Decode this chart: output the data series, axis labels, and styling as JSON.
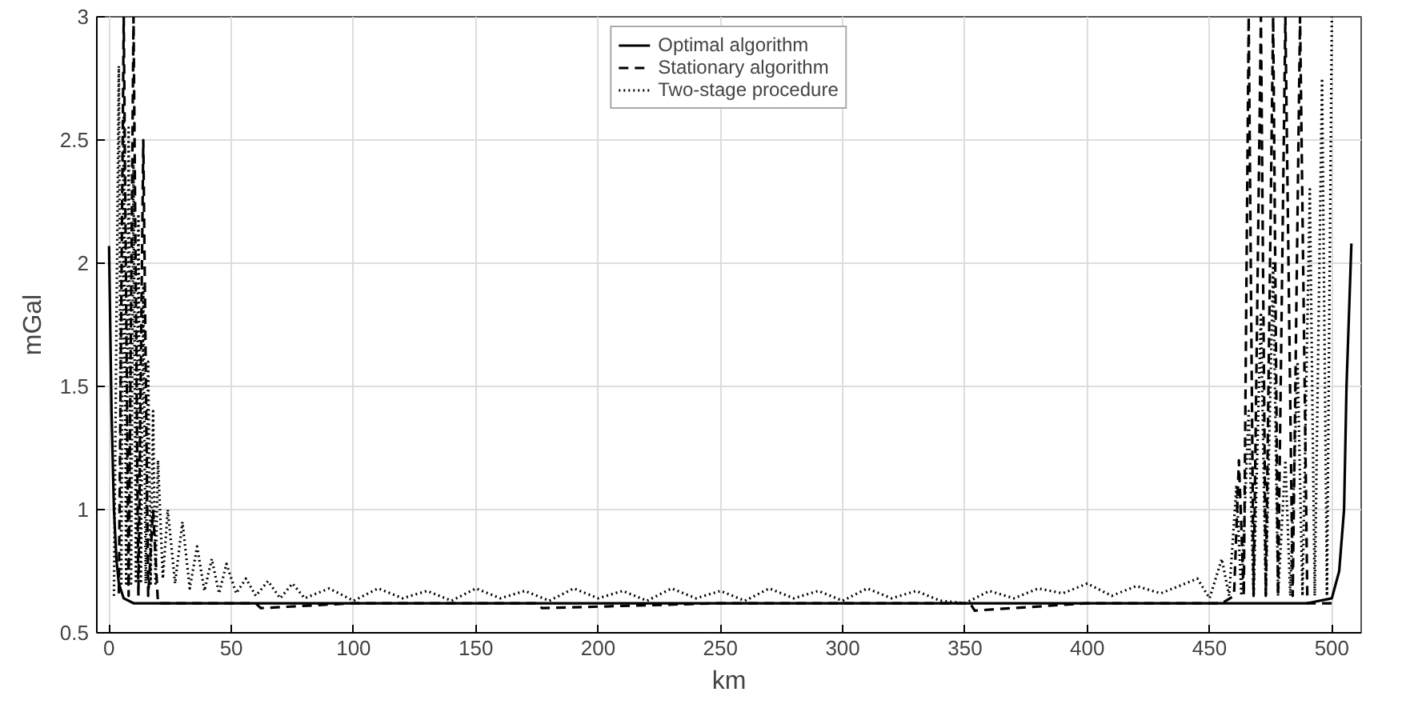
{
  "chart_data": {
    "type": "line",
    "xlabel": "km",
    "ylabel": "mGal",
    "xlim": [
      -5,
      512
    ],
    "ylim": [
      0.5,
      3
    ],
    "xticks": [
      0,
      50,
      100,
      150,
      200,
      250,
      300,
      350,
      400,
      450,
      500
    ],
    "yticks": [
      0.5,
      1,
      1.5,
      2,
      2.5,
      3
    ],
    "grid": true,
    "legend": "top",
    "series": [
      {
        "name": "Optimal algorithm",
        "color": "#000000",
        "line_style": "solid",
        "x": [
          0,
          1,
          2,
          3,
          4,
          6,
          10,
          100,
          200,
          300,
          400,
          490,
          500,
          503,
          505,
          506,
          508
        ],
        "values": [
          2.07,
          1.4,
          1.0,
          0.8,
          0.7,
          0.64,
          0.62,
          0.62,
          0.62,
          0.62,
          0.62,
          0.62,
          0.64,
          0.75,
          1.0,
          1.5,
          2.08
        ]
      },
      {
        "name": "Stationary algorithm",
        "color": "#000000",
        "line_style": "dashed",
        "x": [
          4,
          6,
          8,
          10,
          12,
          14,
          16,
          18,
          20,
          22,
          40,
          60,
          62,
          100,
          140,
          175,
          177,
          250,
          300,
          352,
          354,
          400,
          455,
          460,
          462,
          464,
          466,
          468,
          471,
          473,
          476,
          478,
          481,
          484,
          487,
          490,
          500
        ],
        "values": [
          0.66,
          3,
          0.65,
          3,
          0.65,
          2.5,
          0.65,
          1.0,
          0.62,
          0.62,
          0.62,
          0.62,
          0.6,
          0.62,
          0.62,
          0.62,
          0.6,
          0.62,
          0.62,
          0.62,
          0.59,
          0.62,
          0.62,
          0.65,
          1.2,
          0.65,
          3,
          0.65,
          3,
          0.65,
          3,
          0.65,
          3,
          0.65,
          3,
          0.62,
          0.62
        ]
      },
      {
        "name": "Two-stage procedure",
        "color": "#000000",
        "line_style": "dotted",
        "x": [
          2,
          4,
          5,
          6,
          7,
          8,
          9,
          10,
          11,
          12,
          13,
          14,
          15,
          16,
          17,
          18,
          19,
          20,
          22,
          24,
          27,
          30,
          33,
          36,
          39,
          42,
          45,
          48,
          52,
          56,
          60,
          65,
          70,
          75,
          80,
          90,
          100,
          110,
          120,
          130,
          140,
          150,
          160,
          170,
          180,
          190,
          200,
          210,
          220,
          230,
          240,
          250,
          260,
          270,
          280,
          290,
          300,
          310,
          320,
          330,
          340,
          350,
          360,
          370,
          380,
          390,
          400,
          410,
          420,
          430,
          440,
          445,
          450,
          455,
          458,
          461,
          463,
          466,
          468,
          471,
          473,
          476,
          478,
          481,
          483,
          486,
          488,
          491,
          493,
          496,
          498,
          500
        ],
        "values": [
          0.65,
          2.8,
          0.7,
          2.6,
          0.7,
          2.55,
          0.7,
          2.4,
          0.7,
          2.2,
          0.7,
          1.9,
          0.7,
          1.6,
          0.7,
          1.4,
          0.7,
          1.2,
          0.72,
          1.0,
          0.7,
          0.95,
          0.68,
          0.85,
          0.67,
          0.8,
          0.66,
          0.78,
          0.66,
          0.72,
          0.65,
          0.71,
          0.64,
          0.7,
          0.64,
          0.68,
          0.63,
          0.68,
          0.64,
          0.67,
          0.63,
          0.68,
          0.64,
          0.67,
          0.63,
          0.68,
          0.64,
          0.67,
          0.63,
          0.68,
          0.64,
          0.67,
          0.63,
          0.68,
          0.64,
          0.67,
          0.63,
          0.68,
          0.64,
          0.67,
          0.63,
          0.62,
          0.67,
          0.64,
          0.68,
          0.66,
          0.7,
          0.65,
          0.69,
          0.66,
          0.7,
          0.72,
          0.64,
          0.8,
          0.65,
          1.1,
          0.65,
          1.4,
          0.65,
          1.8,
          0.65,
          2.0,
          0.65,
          1.2,
          0.65,
          1.6,
          0.65,
          2.3,
          0.65,
          2.75,
          0.65,
          3
        ]
      }
    ]
  }
}
